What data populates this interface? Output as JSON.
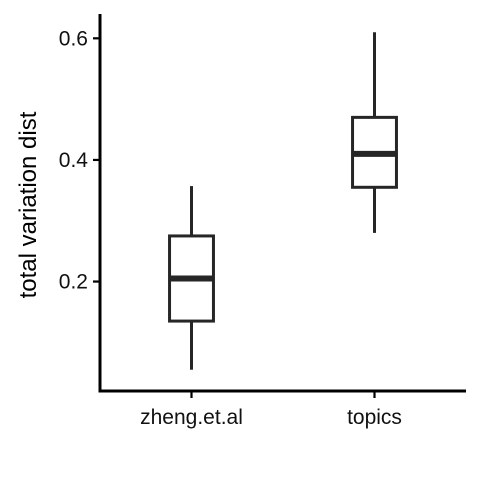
{
  "chart_data": {
    "type": "box",
    "ylabel": "total variation dist",
    "xlabel": "",
    "ylim": [
      0.02,
      0.64
    ],
    "yticks": [
      0.2,
      0.4,
      0.6
    ],
    "ytick_labels": [
      "0.2",
      "0.4",
      "0.6"
    ],
    "grid": false,
    "legend": "none",
    "categories": [
      "zheng.et.al",
      "topics"
    ],
    "boxes": [
      {
        "category": "zheng.et.al",
        "min": 0.055,
        "q1": 0.135,
        "median": 0.205,
        "q3": 0.275,
        "max": 0.357
      },
      {
        "category": "topics",
        "min": 0.28,
        "q1": 0.355,
        "median": 0.41,
        "q3": 0.47,
        "max": 0.61
      }
    ]
  }
}
